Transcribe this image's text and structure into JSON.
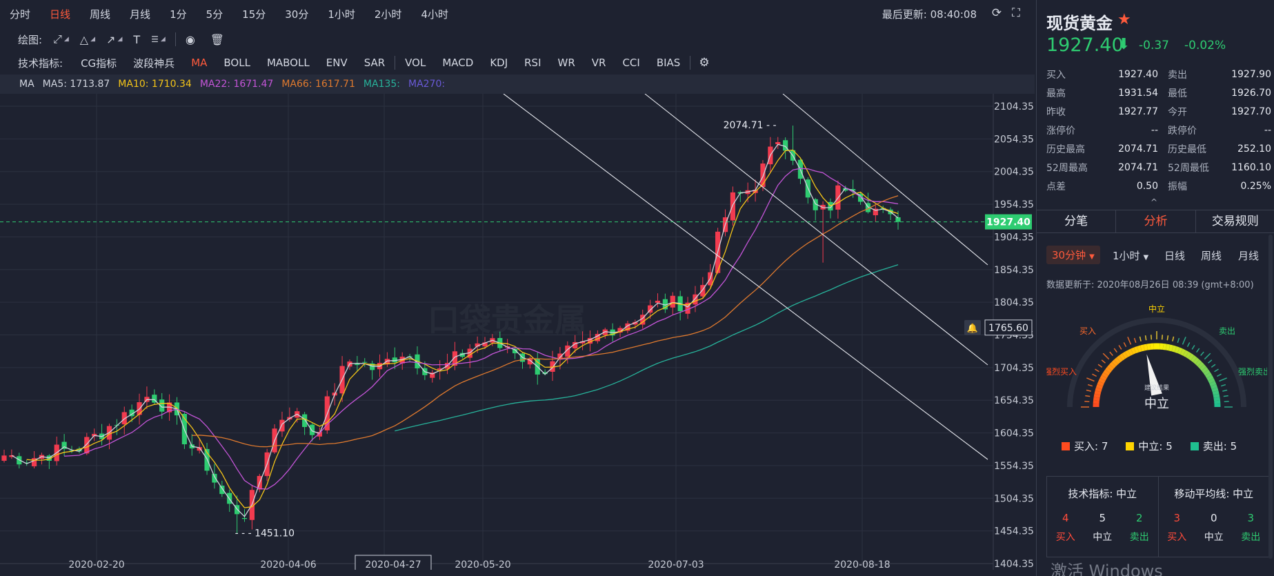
{
  "toolbar": {
    "intervals": [
      "分时",
      "日线",
      "周线",
      "月线",
      "1分",
      "5分",
      "15分",
      "30分",
      "1小时",
      "2小时",
      "4小时"
    ],
    "active_interval": "日线",
    "last_update": "最后更新: 08:40:08",
    "refresh_icon": "refresh-icon",
    "fullscreen_icon": "fullscreen-icon"
  },
  "draw_bar": {
    "label": "绘图:",
    "tools": [
      "line-tool-icon",
      "triangle-tool-icon",
      "arrow-tool-icon",
      "text-tool-icon",
      "fib-tool-icon"
    ],
    "eye_icon": "eye-icon",
    "trash_icon": "trash-icon"
  },
  "indicator_bar": {
    "label": "技术指标:",
    "main": [
      "CG指标",
      "波段神兵",
      "MA",
      "BOLL",
      "MABOLL",
      "ENV",
      "SAR"
    ],
    "sub": [
      "VOL",
      "MACD",
      "KDJ",
      "RSI",
      "WR",
      "VR",
      "CCI",
      "BIAS"
    ],
    "active": "MA",
    "settings_icon": "gear-icon"
  },
  "ma_legend": {
    "name": "MA",
    "items": [
      {
        "text": "MA5: 1713.87",
        "color": "#d0d4de"
      },
      {
        "text": "MA10: 1710.34",
        "color": "#f5c518"
      },
      {
        "text": "MA22: 1671.47",
        "color": "#c455d8"
      },
      {
        "text": "MA66: 1617.71",
        "color": "#e07a2e"
      },
      {
        "text": "MA135:",
        "color": "#27b39b"
      },
      {
        "text": "MA270:",
        "color": "#6a5ad8"
      }
    ]
  },
  "chart_data": {
    "type": "candlestick",
    "y_ticks": [
      2104.35,
      2054.35,
      2004.35,
      1954.35,
      1904.35,
      1854.35,
      1804.35,
      1754.35,
      1704.35,
      1654.35,
      1604.35,
      1554.35,
      1504.35,
      1454.35,
      1404.35
    ],
    "ylim": [
      1404.35,
      2104.35
    ],
    "x_ticks": [
      "2020-02-20",
      "2020-04-06",
      "2020-04-27",
      "2020-05-20",
      "2020-07-03",
      "2020-08-18"
    ],
    "highlighted_x": "2020-04-27",
    "current_price": "1927.40",
    "bell_price": "1765.60",
    "high_label": "2074.71",
    "low_label": "1451.10",
    "up_color": "#f23b4f",
    "down_color": "#2ecc71",
    "price_line_color": "#2ecc71",
    "watermark": "口袋贵金属"
  },
  "quote": {
    "title": "现货黄金",
    "price": "1927.40",
    "change": "-0.37",
    "change_pct": "-0.02%",
    "rows": [
      {
        "l": "买入",
        "v": "1927.40",
        "l2": "卖出",
        "v2": "1927.90"
      },
      {
        "l": "最高",
        "v": "1931.54",
        "l2": "最低",
        "v2": "1926.70"
      },
      {
        "l": "昨收",
        "v": "1927.77",
        "l2": "今开",
        "v2": "1927.70"
      },
      {
        "l": "涨停价",
        "v": "--",
        "l2": "跌停价",
        "v2": "--"
      },
      {
        "l": "历史最高",
        "v": "2074.71",
        "l2": "历史最低",
        "v2": "252.10"
      },
      {
        "l": "52周最高",
        "v": "2074.71",
        "l2": "52周最低",
        "v2": "1160.10"
      },
      {
        "l": "点差",
        "v": "0.50",
        "l2": "振幅",
        "v2": "0.25%"
      }
    ]
  },
  "tabs": [
    "分笔",
    "分析",
    "交易规则"
  ],
  "active_tab": "分析",
  "analysis": {
    "timeframes": [
      "30分钟",
      "1小时",
      "日线",
      "周线",
      "月线"
    ],
    "active_timeframe": "30分钟",
    "update_text": "数据更新于: 2020年08月26日 08:39 (gmt+8:00)",
    "gauge_labels": {
      "top": "中立",
      "left_mid": "买入",
      "right_mid": "卖出",
      "left": "强烈买入",
      "right": "强烈卖出",
      "center_small": "建议结果",
      "center": "中立"
    },
    "legend": [
      {
        "label": "买入: 7",
        "color": "#ff4b1f"
      },
      {
        "label": "中立: 5",
        "color": "#ffd400"
      },
      {
        "label": "卖出: 5",
        "color": "#1fbf8f"
      }
    ],
    "summary": [
      {
        "title": "技术指标: 中立",
        "buy": "4",
        "neutral": "5",
        "sell": "2"
      },
      {
        "title": "移动平均线: 中立",
        "buy": "3",
        "neutral": "0",
        "sell": "3"
      }
    ],
    "buy_word": "买入",
    "neutral_word": "中立",
    "sell_word": "卖出"
  },
  "watermark_os": "激活 Windows"
}
